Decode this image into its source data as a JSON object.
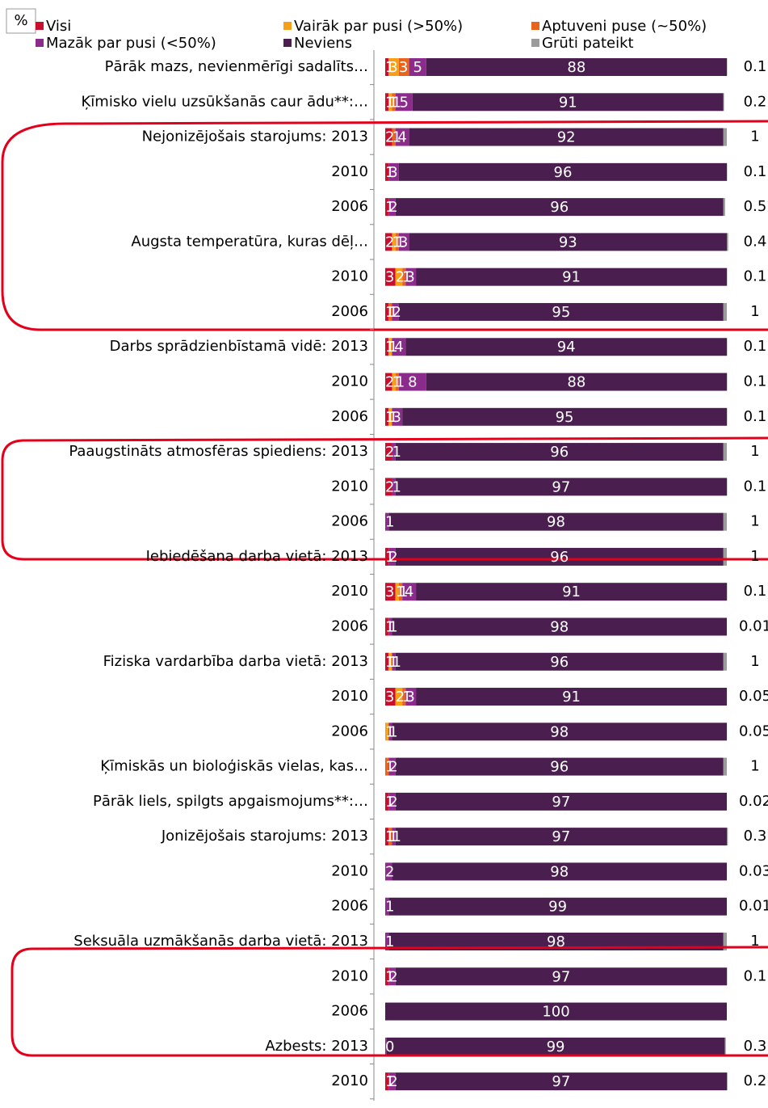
{
  "chart_data": {
    "type": "stacked-bar-horizontal",
    "unit_label": "%",
    "categories": [
      "Pārāk mazs, nevienmērīgi sadalīts…",
      "Ķīmisko vielu uzsūkšanās caur ādu**:…",
      "Nejonizējošais starojums: 2013",
      "2010",
      "2006",
      "Augsta temperatūra, kuras dēļ…",
      "2010",
      "2006",
      "Darbs sprādzienbīstamā vidē: 2013",
      "2010",
      "2006",
      "Paaugstināts atmosfēras spiediens: 2013",
      "2010",
      "2006",
      "Iebiedēšana darba vietā: 2013",
      "2010",
      "2006",
      "Fiziska vardarbība darba vietā: 2013",
      "2010",
      "2006",
      "Ķīmiskās un bioloģiskās vielas, kas…",
      "Pārāk liels, spilgts apgaismojums**:…",
      "Jonizējošais starojums: 2013",
      "2010",
      "2006",
      "Seksuāla uzmākšanās darba vietā: 2013",
      "2010",
      "2006",
      "Azbests: 2013",
      "2010"
    ],
    "xlim": [
      0,
      100
    ],
    "series": [
      {
        "name": "Visi",
        "color": "#c8102e",
        "values": [
          1,
          1,
          2,
          1,
          1,
          2,
          3,
          1,
          1,
          2,
          1,
          2,
          2,
          0,
          1,
          3,
          1,
          1,
          3,
          0,
          0,
          1,
          1,
          0,
          0,
          0,
          1,
          0,
          0,
          1
        ]
      },
      {
        "name": "Vairāk par pusi (>50%)",
        "color": "#f6a01a",
        "values": [
          3,
          1,
          0,
          0,
          0,
          1,
          2,
          0,
          1,
          1,
          1,
          0,
          0,
          0,
          0,
          1,
          0,
          1,
          2,
          1,
          0,
          0,
          0,
          0,
          0,
          0,
          0,
          0,
          0,
          0
        ]
      },
      {
        "name": "Aptuveni puse (~50%)",
        "color": "#e8641b",
        "values": [
          3,
          1,
          1,
          0,
          0,
          1,
          1,
          1,
          0,
          1,
          0,
          0,
          0,
          0,
          0,
          1,
          0,
          0,
          1,
          0,
          1,
          0,
          1,
          0,
          0,
          0,
          0,
          0,
          0,
          0
        ]
      },
      {
        "name": "Mazāk par pusi (<50%)",
        "color": "#8b2c8c",
        "values": [
          5,
          5,
          4,
          3,
          2,
          3,
          3,
          2,
          4,
          8,
          3,
          1,
          1,
          1,
          2,
          4,
          1,
          1,
          3,
          1,
          2,
          2,
          1,
          2,
          1,
          1,
          2,
          0,
          0.4,
          2
        ],
        "value_labels": [
          "5",
          "5",
          "4",
          "3",
          "2",
          "3",
          "3",
          "2",
          "4",
          "8",
          "3",
          "1",
          "1",
          "1",
          "2",
          "4",
          "1",
          "1",
          "3",
          "1",
          "2",
          "2",
          "1",
          "2",
          "1",
          "1",
          "2",
          null,
          "0",
          "2"
        ]
      },
      {
        "name": "Neviens",
        "color": "#4a1f4f",
        "values": [
          88,
          91,
          92,
          96,
          96,
          93,
          91,
          95,
          94,
          88,
          95,
          96,
          97,
          98,
          96,
          91,
          98,
          96,
          91,
          98,
          96,
          97,
          97,
          98,
          99,
          98,
          97,
          100,
          99,
          97
        ]
      },
      {
        "name": "Grūti pateikt",
        "color": "#9b9b9b",
        "values": [
          0.1,
          0.2,
          1,
          0.1,
          0.5,
          0.4,
          0.1,
          1,
          0.1,
          0.1,
          0.1,
          1,
          0.1,
          1,
          1,
          0.1,
          0.01,
          1,
          0.05,
          0.05,
          1,
          0.02,
          0.3,
          0.03,
          0.01,
          1,
          0.1,
          null,
          0.3,
          0.2
        ]
      }
    ]
  }
}
